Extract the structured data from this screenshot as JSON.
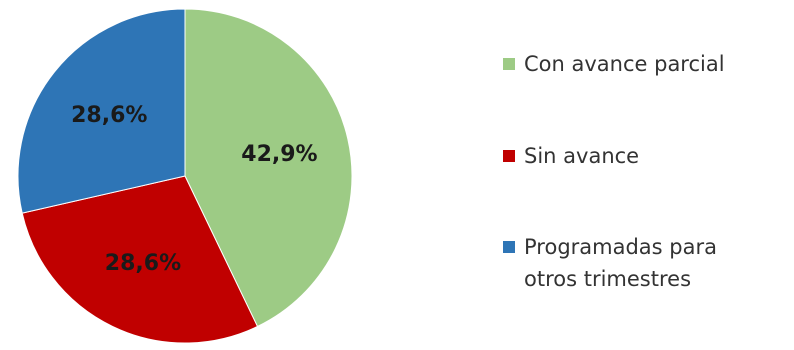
{
  "chart_data": {
    "type": "pie",
    "slices": [
      {
        "label": "Con avance parcial",
        "value": 42.9,
        "data_label": "42,9%",
        "color": "#9DCB85"
      },
      {
        "label": "Sin avance",
        "value": 28.6,
        "data_label": "28,6%",
        "color": "#C00000"
      },
      {
        "label": "Programadas para otros trimestres",
        "value": 28.6,
        "data_label": "28,6%",
        "color": "#2E75B6"
      }
    ],
    "legend": {
      "position": "right",
      "entries": [
        {
          "lines": [
            "Con avance parcial"
          ],
          "color": "#9DCB85"
        },
        {
          "lines": [
            "Sin avance"
          ],
          "color": "#C00000"
        },
        {
          "lines": [
            "Programadas para",
            "otros trimestres"
          ],
          "color": "#2E75B6"
        }
      ]
    },
    "start_angle": "top",
    "direction": "clockwise"
  }
}
